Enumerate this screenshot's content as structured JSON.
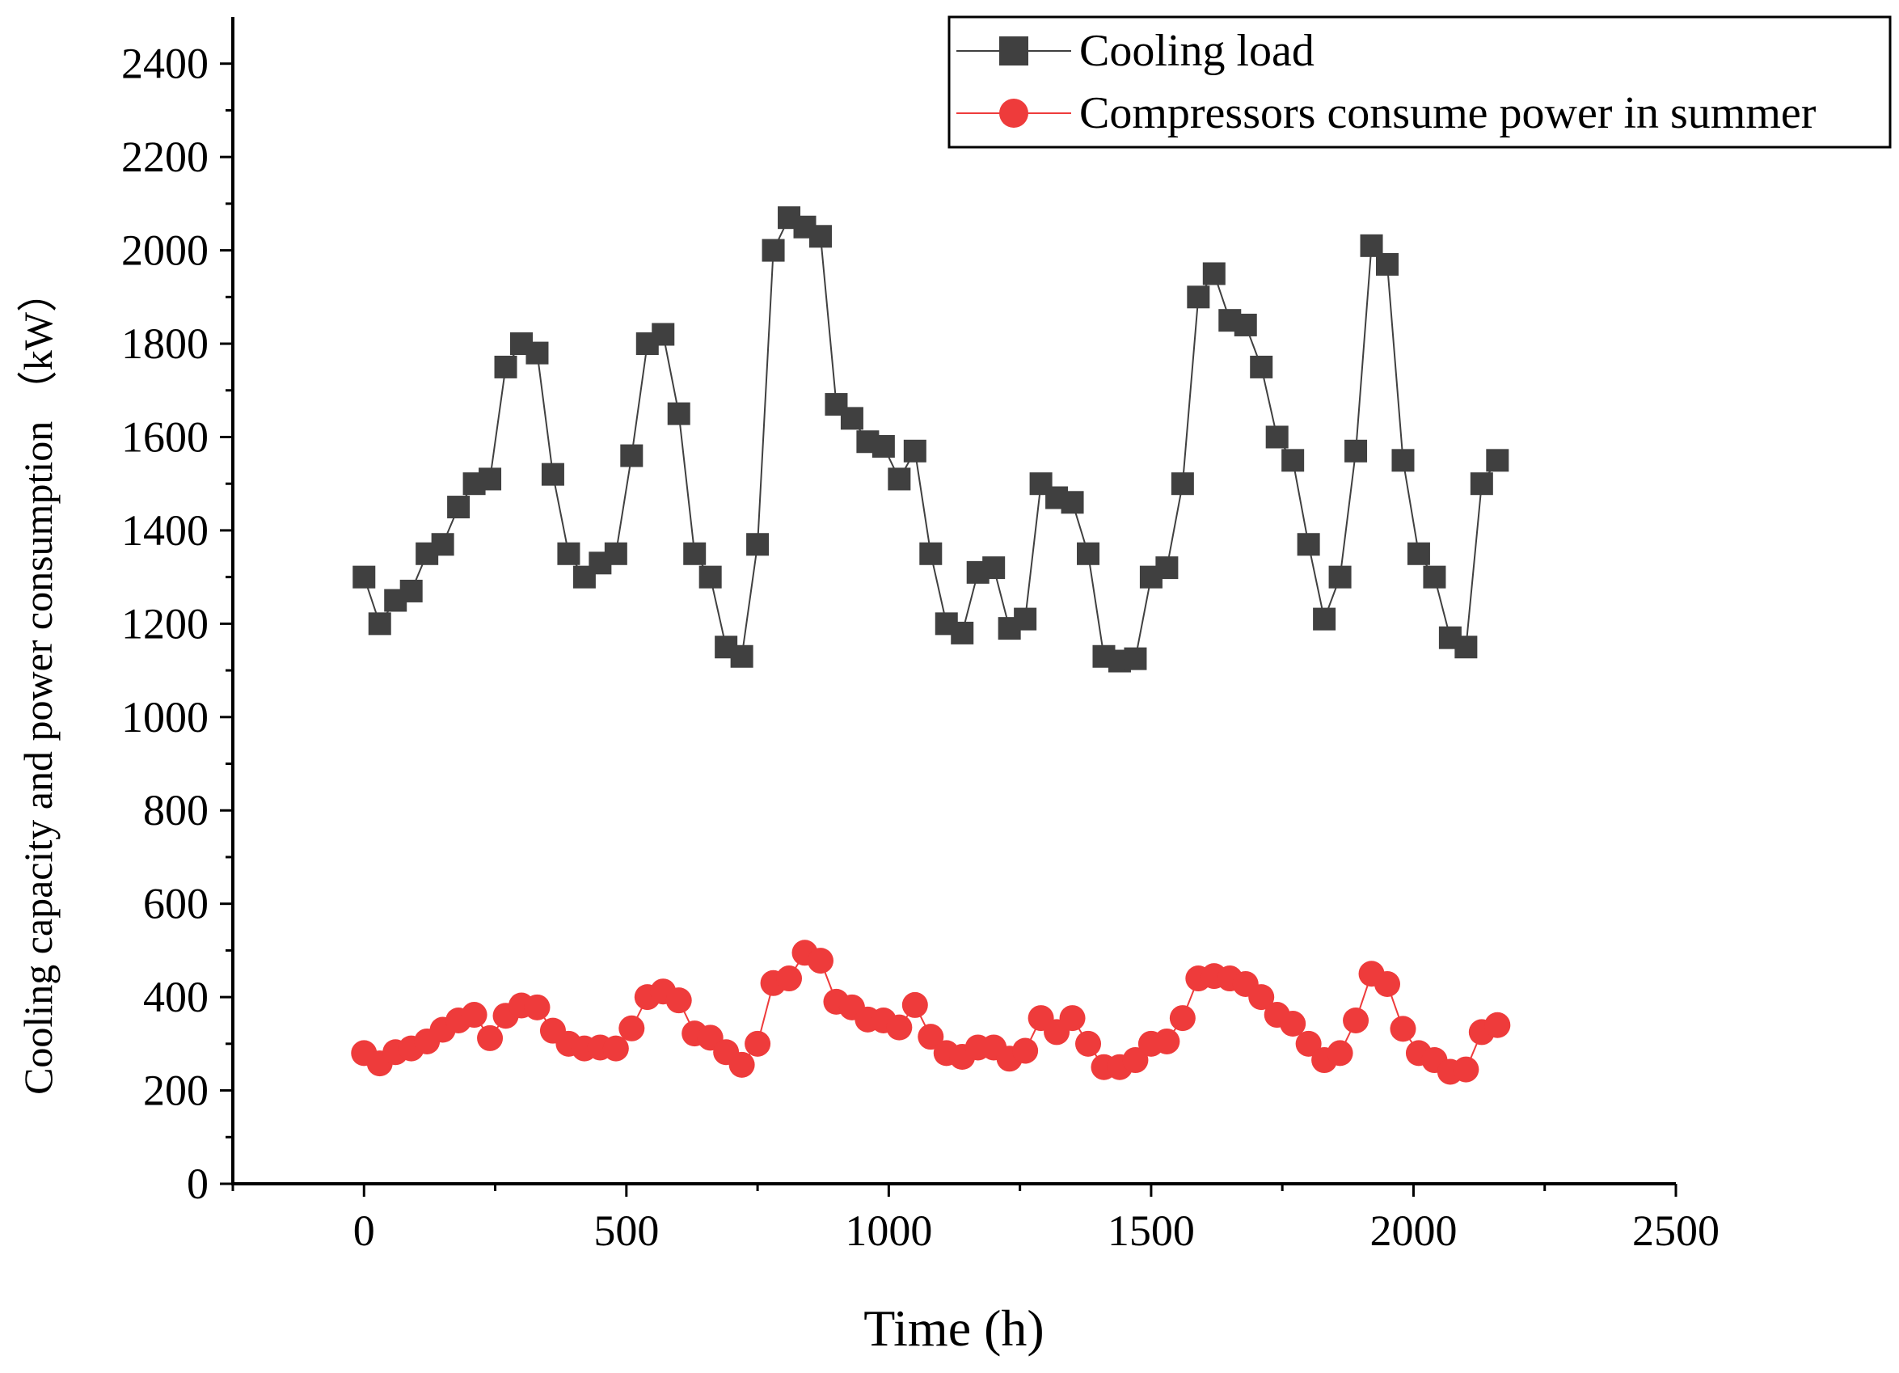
{
  "chart_data": {
    "type": "line",
    "title": "",
    "xlabel": "Time (h)",
    "ylabel": "Cooling capacity and power consumption （kW）",
    "xlim": [
      -250,
      2500
    ],
    "ylim": [
      0,
      2500
    ],
    "xticks": [
      0,
      500,
      1000,
      1500,
      2000,
      2500
    ],
    "yticks": [
      0,
      200,
      400,
      600,
      800,
      1000,
      1200,
      1400,
      1600,
      1800,
      2000,
      2200,
      2400
    ],
    "grid": false,
    "legend_position": "top-right",
    "x": [
      0,
      30,
      60,
      90,
      120,
      150,
      180,
      210,
      240,
      270,
      300,
      330,
      360,
      390,
      420,
      450,
      480,
      510,
      540,
      570,
      600,
      630,
      660,
      690,
      720,
      750,
      780,
      810,
      840,
      870,
      900,
      930,
      960,
      990,
      1020,
      1050,
      1080,
      1110,
      1140,
      1170,
      1200,
      1230,
      1260,
      1290,
      1320,
      1350,
      1380,
      1410,
      1440,
      1470,
      1500,
      1530,
      1560,
      1590,
      1620,
      1650,
      1680,
      1710,
      1740,
      1770,
      1800,
      1830,
      1860,
      1890,
      1920,
      1950,
      1980,
      2010,
      2040,
      2070,
      2100,
      2130,
      2160
    ],
    "series": [
      {
        "name": "Cooling load",
        "color": "#404040",
        "marker": "square",
        "values": [
          1300,
          1200,
          1250,
          1270,
          1350,
          1370,
          1450,
          1500,
          1510,
          1750,
          1800,
          1780,
          1520,
          1350,
          1300,
          1330,
          1350,
          1560,
          1800,
          1820,
          1650,
          1350,
          1300,
          1150,
          1130,
          1370,
          2000,
          2070,
          2050,
          2030,
          1670,
          1640,
          1590,
          1580,
          1510,
          1570,
          1350,
          1200,
          1180,
          1310,
          1320,
          1190,
          1210,
          1500,
          1470,
          1460,
          1350,
          1130,
          1120,
          1125,
          1300,
          1320,
          1500,
          1900,
          1950,
          1850,
          1840,
          1750,
          1600,
          1550,
          1370,
          1210,
          1300,
          1570,
          2010,
          1970,
          1550,
          1350,
          1300,
          1170,
          1150,
          1500,
          1550
        ]
      },
      {
        "name": "Compressors consume power in summer",
        "color": "#ee3b3b",
        "marker": "circle",
        "values": [
          280,
          258,
          282,
          290,
          305,
          330,
          350,
          362,
          312,
          360,
          382,
          378,
          328,
          300,
          290,
          292,
          290,
          333,
          400,
          412,
          393,
          322,
          313,
          282,
          255,
          300,
          430,
          440,
          495,
          478,
          390,
          378,
          352,
          350,
          335,
          383,
          315,
          280,
          272,
          292,
          292,
          268,
          285,
          355,
          325,
          355,
          300,
          250,
          250,
          265,
          300,
          305,
          355,
          440,
          445,
          440,
          428,
          400,
          362,
          343,
          300,
          265,
          280,
          350,
          450,
          428,
          332,
          280,
          265,
          240,
          245,
          325,
          340
        ]
      }
    ]
  }
}
